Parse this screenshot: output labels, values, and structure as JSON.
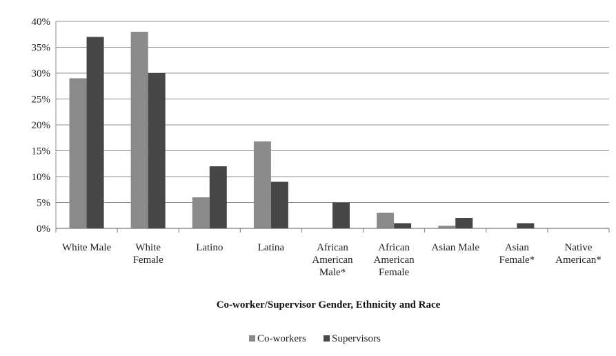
{
  "chart_data": {
    "type": "bar",
    "categories": [
      [
        "White Male"
      ],
      [
        "White",
        "Female"
      ],
      [
        "Latino"
      ],
      [
        "Latina"
      ],
      [
        "African",
        "American",
        "Male*"
      ],
      [
        "African",
        "American",
        "Female"
      ],
      [
        "Asian Male"
      ],
      [
        "Asian",
        "Female*"
      ],
      [
        "Native",
        "American*"
      ]
    ],
    "series": [
      {
        "name": "Co-workers",
        "color": "#8a8a8a",
        "values": [
          29,
          38,
          6,
          16.8,
          0,
          3,
          0.5,
          0,
          0
        ]
      },
      {
        "name": "Supervisors",
        "color": "#474747",
        "values": [
          37,
          30,
          12,
          9,
          5,
          1,
          2,
          1,
          0
        ]
      }
    ],
    "y_ticks": [
      "0%",
      "5%",
      "10%",
      "15%",
      "20%",
      "25%",
      "30%",
      "35%",
      "40%"
    ],
    "ylim": [
      0,
      40
    ],
    "xlabel": "Co-worker/Supervisor Gender, Ethnicity and Race",
    "ylabel": "",
    "grid": true,
    "legend_position": "bottom"
  }
}
